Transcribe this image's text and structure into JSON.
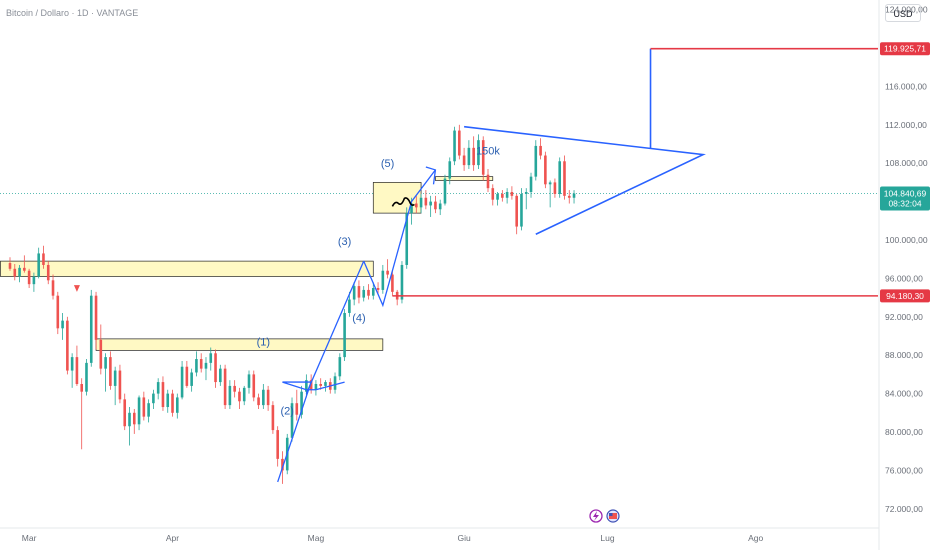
{
  "header": {
    "symbol_label": "Bitcoin / Dollaro · 1D · VANTAGE",
    "currency_button": "USD"
  },
  "colors": {
    "up": "#26a69a",
    "down": "#ef5350",
    "pattern_lines": "#2962ff",
    "level_lines": "#e53945",
    "zone_fill": "#fff9c4",
    "price_badge": "#26a69a"
  },
  "chart_data": {
    "type": "candlestick",
    "y_axis": {
      "ticks": [
        "124.000,00",
        "120.000,00",
        "116.000,00",
        "112.000,00",
        "108.000,00",
        "104.000,00",
        "100.000,00",
        "96.000,00",
        "92.000,00",
        "88.000,00",
        "84.000,00",
        "80.000,00",
        "76.000,00",
        "72.000,00"
      ],
      "range": [
        70000,
        125000
      ]
    },
    "x_axis": {
      "ticks": [
        "Mar",
        "Apr",
        "Mag",
        "Giu",
        "Lug",
        "Ago"
      ]
    },
    "candles": [
      [
        97600,
        98200,
        96800,
        97000
      ],
      [
        97000,
        97500,
        95800,
        96200
      ],
      [
        96200,
        97400,
        95600,
        97100
      ],
      [
        97100,
        98400,
        96600,
        96800
      ],
      [
        96800,
        97000,
        95000,
        95400
      ],
      [
        95400,
        96600,
        94600,
        96200
      ],
      [
        96200,
        99200,
        96000,
        98600
      ],
      [
        98600,
        99400,
        97000,
        97400
      ],
      [
        97400,
        97800,
        95400,
        95800
      ],
      [
        95800,
        96400,
        93800,
        94200
      ],
      [
        94200,
        94600,
        90200,
        90800
      ],
      [
        90800,
        92400,
        89600,
        91600
      ],
      [
        91600,
        92000,
        86000,
        86400
      ],
      [
        86400,
        88200,
        84600,
        87800
      ],
      [
        87800,
        89000,
        84800,
        85000
      ],
      [
        85000,
        85600,
        78200,
        84200
      ],
      [
        84200,
        87600,
        83800,
        87200
      ],
      [
        87200,
        94800,
        86800,
        94200
      ],
      [
        94200,
        94600,
        88600,
        89600
      ],
      [
        89600,
        91200,
        86000,
        86600
      ],
      [
        86600,
        88200,
        84200,
        87800
      ],
      [
        87800,
        88400,
        84400,
        84800
      ],
      [
        84800,
        86800,
        82800,
        86400
      ],
      [
        86400,
        87000,
        83000,
        83400
      ],
      [
        83400,
        84000,
        80200,
        80600
      ],
      [
        80600,
        82600,
        78600,
        82000
      ],
      [
        82000,
        82400,
        79800,
        80800
      ],
      [
        80800,
        83800,
        80200,
        83600
      ],
      [
        83600,
        84200,
        81200,
        81600
      ],
      [
        81600,
        83400,
        81000,
        83000
      ],
      [
        83000,
        84400,
        82400,
        84000
      ],
      [
        84000,
        85600,
        83400,
        85200
      ],
      [
        85200,
        85800,
        82200,
        82600
      ],
      [
        82600,
        84400,
        82000,
        84000
      ],
      [
        84000,
        84400,
        81600,
        82000
      ],
      [
        82000,
        84000,
        81400,
        83600
      ],
      [
        83600,
        87400,
        83400,
        86800
      ],
      [
        86800,
        87400,
        84600,
        84800
      ],
      [
        84800,
        86600,
        84200,
        86200
      ],
      [
        86200,
        88400,
        85800,
        87600
      ],
      [
        87600,
        88200,
        86200,
        86600
      ],
      [
        86600,
        87800,
        85400,
        87200
      ],
      [
        87200,
        88800,
        86400,
        88200
      ],
      [
        88200,
        88600,
        84600,
        85200
      ],
      [
        85200,
        87000,
        84800,
        86600
      ],
      [
        86600,
        87000,
        82400,
        82800
      ],
      [
        82800,
        85400,
        82400,
        84800
      ],
      [
        84800,
        85400,
        83600,
        84200
      ],
      [
        84200,
        84600,
        82400,
        83200
      ],
      [
        83200,
        84800,
        82800,
        84600
      ],
      [
        84600,
        86400,
        84000,
        86000
      ],
      [
        86000,
        86400,
        83200,
        83600
      ],
      [
        83600,
        84000,
        82400,
        82800
      ],
      [
        82800,
        85000,
        82400,
        84400
      ],
      [
        84400,
        84800,
        82200,
        82800
      ],
      [
        82800,
        83200,
        79800,
        80200
      ],
      [
        80200,
        80600,
        76400,
        77200
      ],
      [
        77200,
        78000,
        74600,
        76000
      ],
      [
        76000,
        79800,
        75600,
        79400
      ],
      [
        79400,
        83600,
        79000,
        83000
      ],
      [
        83000,
        84400,
        81200,
        81800
      ],
      [
        81800,
        84800,
        81400,
        84200
      ],
      [
        84200,
        86000,
        83600,
        85400
      ],
      [
        85400,
        86000,
        84000,
        84400
      ],
      [
        84400,
        85400,
        83800,
        85000
      ],
      [
        85000,
        85600,
        84400,
        84800
      ],
      [
        84800,
        85400,
        84200,
        85200
      ],
      [
        85200,
        85600,
        84000,
        84400
      ],
      [
        84400,
        86200,
        84000,
        85800
      ],
      [
        85800,
        88200,
        85400,
        87800
      ],
      [
        87800,
        92800,
        87400,
        92400
      ],
      [
        92400,
        94600,
        92000,
        93800
      ],
      [
        93800,
        95600,
        93200,
        95200
      ],
      [
        95200,
        95800,
        93400,
        94000
      ],
      [
        94000,
        95200,
        93600,
        94800
      ],
      [
        94800,
        95400,
        93800,
        94200
      ],
      [
        94200,
        95600,
        93800,
        95000
      ],
      [
        95000,
        95600,
        94400,
        94800
      ],
      [
        94800,
        97400,
        94400,
        96800
      ],
      [
        96800,
        98000,
        96000,
        96400
      ],
      [
        96400,
        96800,
        94200,
        94600
      ],
      [
        94600,
        94800,
        93200,
        93800
      ],
      [
        93800,
        97800,
        93400,
        97400
      ],
      [
        97400,
        103400,
        97000,
        102800
      ],
      [
        102800,
        104400,
        101600,
        103800
      ],
      [
        103800,
        104600,
        102800,
        103400
      ],
      [
        103400,
        104800,
        102800,
        104400
      ],
      [
        104400,
        105200,
        103200,
        103600
      ],
      [
        103600,
        104600,
        102400,
        104000
      ],
      [
        104000,
        104600,
        102800,
        103200
      ],
      [
        103200,
        104200,
        102600,
        103800
      ],
      [
        103800,
        106800,
        103600,
        106400
      ],
      [
        106400,
        108600,
        105800,
        108200
      ],
      [
        108200,
        111800,
        107800,
        111400
      ],
      [
        111400,
        112000,
        108400,
        108800
      ],
      [
        108800,
        109600,
        107200,
        107800
      ],
      [
        107800,
        110400,
        107400,
        109600
      ],
      [
        109600,
        110800,
        107200,
        107800
      ],
      [
        107800,
        111000,
        107400,
        110400
      ],
      [
        110400,
        110800,
        106200,
        106800
      ],
      [
        106800,
        107400,
        105000,
        105400
      ],
      [
        105400,
        105800,
        103600,
        104200
      ],
      [
        104200,
        105000,
        103600,
        104800
      ],
      [
        104800,
        105200,
        104000,
        104400
      ],
      [
        104400,
        105400,
        103800,
        105000
      ],
      [
        105000,
        105600,
        104200,
        104600
      ],
      [
        104600,
        104800,
        100600,
        101400
      ],
      [
        101400,
        105400,
        101000,
        104800
      ],
      [
        104800,
        105400,
        103200,
        105000
      ],
      [
        105000,
        107000,
        104400,
        106600
      ],
      [
        106600,
        110400,
        106200,
        109800
      ],
      [
        109800,
        110600,
        108400,
        108800
      ],
      [
        108800,
        109200,
        105400,
        105800
      ],
      [
        105800,
        106200,
        103400,
        106000
      ],
      [
        106000,
        106400,
        104400,
        104800
      ],
      [
        104800,
        108600,
        104400,
        108200
      ],
      [
        108200,
        108800,
        104200,
        104600
      ],
      [
        104600,
        105200,
        103800,
        104400
      ],
      [
        104400,
        105200,
        103800,
        104840.69
      ]
    ],
    "x_axis_ticks_candle_index": {
      "Mar": 4,
      "Apr": 34,
      "Mag": 64,
      "Giu": 95,
      "Lug": 125,
      "Ago": 156
    },
    "horizontal_levels": [
      {
        "label": "119.925,71",
        "value": 119925.71,
        "color": "#e53945"
      },
      {
        "label": "94.180,30",
        "value": 94180.3,
        "color": "#e53945"
      }
    ],
    "current_price": {
      "label": "104.840,69",
      "countdown": "08:32:04",
      "value": 104840.69
    },
    "annotations": {
      "waves": [
        {
          "text": "(1)",
          "candle_index": 53,
          "y": 89000
        },
        {
          "text": "(2)",
          "candle_index": 58,
          "y": 81800
        },
        {
          "text": "(3)",
          "candle_index": 70,
          "y": 99500
        },
        {
          "text": "(4)",
          "candle_index": 73,
          "y": 91500
        },
        {
          "text": "(5)",
          "candle_index": 79,
          "y": 107600
        }
      ],
      "target_text": "150k",
      "zones": [
        {
          "from_index": -2,
          "to_index": 76,
          "low": 96200,
          "high": 97800
        },
        {
          "from_index": 18,
          "to_index": 78,
          "low": 88500,
          "high": 89700
        },
        {
          "from_index": 76,
          "to_index": 86,
          "low": 102800,
          "high": 106000
        },
        {
          "from_index": 89,
          "to_index": 101,
          "low": 106200,
          "high": 106600
        }
      ]
    }
  }
}
